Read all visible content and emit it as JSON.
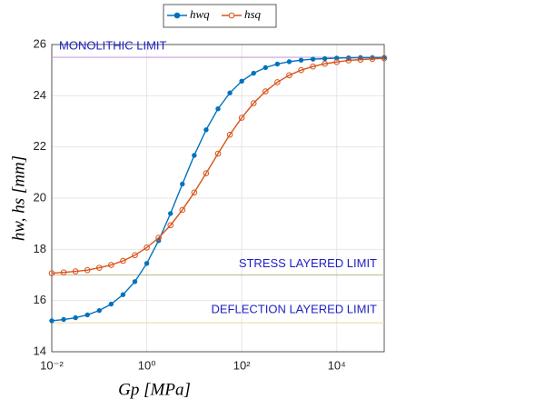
{
  "chart_data": {
    "type": "line",
    "xlabel": "Gp [MPa]",
    "ylabel": "hw, hs [mm]",
    "x": [
      0.01,
      0.01778,
      0.03162,
      0.05623,
      0.1,
      0.1778,
      0.3162,
      0.5623,
      1,
      1.778,
      3.162,
      5.623,
      10,
      17.78,
      31.62,
      56.23,
      100,
      177.8,
      316.2,
      562.3,
      1000,
      1778,
      3162,
      5623,
      10000,
      17783,
      31623,
      56234,
      100000
    ],
    "series": [
      {
        "name": "hwq",
        "color": "#0072bd",
        "marker": "filled",
        "values": [
          15.21,
          15.26,
          15.33,
          15.44,
          15.61,
          15.86,
          16.23,
          16.74,
          17.45,
          18.34,
          19.4,
          20.55,
          21.67,
          22.67,
          23.49,
          24.11,
          24.57,
          24.88,
          25.1,
          25.24,
          25.33,
          25.39,
          25.43,
          25.45,
          25.47,
          25.48,
          25.49,
          25.49,
          25.5
        ]
      },
      {
        "name": "hsq",
        "color": "#d95319",
        "marker": "open",
        "values": [
          17.07,
          17.1,
          17.14,
          17.19,
          17.28,
          17.39,
          17.55,
          17.77,
          18.07,
          18.45,
          18.94,
          19.54,
          20.22,
          20.97,
          21.74,
          22.48,
          23.14,
          23.71,
          24.17,
          24.53,
          24.8,
          25.0,
          25.14,
          25.25,
          25.32,
          25.38,
          25.41,
          25.44,
          25.46
        ]
      }
    ],
    "reference_lines": [
      {
        "label": "MONOLITHIC LIMIT",
        "value": 25.5,
        "color": "#c9a0dc"
      },
      {
        "label": "STRESS LAYERED LIMIT",
        "value": 17.0,
        "color": "#c2c29a"
      },
      {
        "label": "DEFLECTION LAYERED LIMIT",
        "value": 15.13,
        "color": "#f3d9a0"
      }
    ],
    "xscale": "log",
    "xlim": [
      0.01,
      100000
    ],
    "ylim": [
      14,
      26
    ],
    "xticks": [
      {
        "value": 0.01,
        "label": "10⁻²"
      },
      {
        "value": 1,
        "label": "10⁰"
      },
      {
        "value": 100,
        "label": "10²"
      },
      {
        "value": 10000,
        "label": "10⁴"
      }
    ],
    "yticks": [
      14,
      16,
      18,
      20,
      22,
      24,
      26
    ],
    "grid": true,
    "legend": "top"
  }
}
